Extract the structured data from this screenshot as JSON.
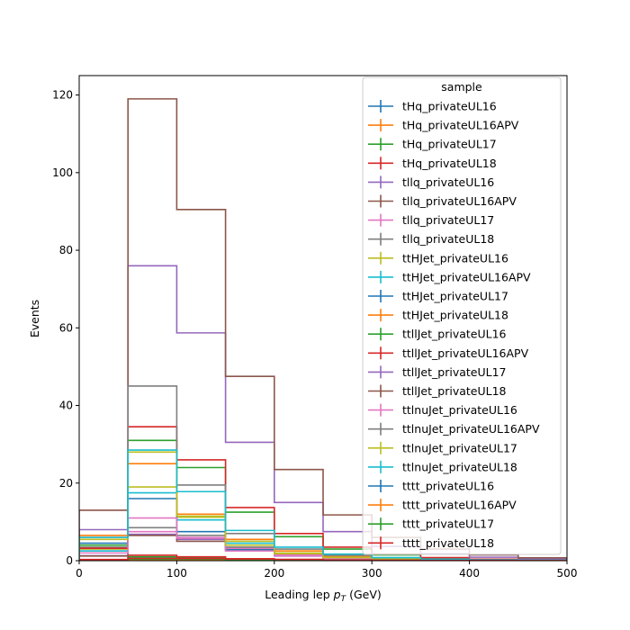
{
  "chart_data": {
    "type": "histogram-step",
    "xlabel_main": "Leading lep ",
    "xlabel_p": "p",
    "xlabel_sub": "T",
    "xlabel_unit": " (GeV)",
    "ylabel": "Events",
    "xlim": [
      0,
      500
    ],
    "ylim": [
      0,
      125
    ],
    "xticks": [
      0,
      100,
      200,
      300,
      400,
      500
    ],
    "yticks": [
      0,
      20,
      40,
      60,
      80,
      100,
      120
    ],
    "bin_edges": [
      0,
      50,
      100,
      150,
      200,
      250,
      300,
      350,
      400,
      450,
      500
    ],
    "grid": false,
    "legend_title": "sample",
    "legend_placement": "top-right",
    "series": [
      {
        "name": "tHq_privateUL16",
        "color": "#1f77b4",
        "values": [
          0.1,
          0.6,
          0.4,
          0.2,
          0.1,
          0.05,
          0.03,
          0.02,
          0.01,
          0.01
        ]
      },
      {
        "name": "tHq_privateUL16APV",
        "color": "#ff7f0e",
        "values": [
          0.1,
          0.5,
          0.35,
          0.2,
          0.1,
          0.05,
          0.03,
          0.02,
          0.01,
          0.01
        ]
      },
      {
        "name": "tHq_privateUL17",
        "color": "#2ca02c",
        "values": [
          0.2,
          1.0,
          0.7,
          0.4,
          0.2,
          0.1,
          0.05,
          0.03,
          0.02,
          0.01
        ]
      },
      {
        "name": "tHq_privateUL18",
        "color": "#d62728",
        "values": [
          0.3,
          1.4,
          1.0,
          0.5,
          0.3,
          0.15,
          0.08,
          0.05,
          0.03,
          0.02
        ]
      },
      {
        "name": "tllq_privateUL16",
        "color": "#9467bd",
        "values": [
          1.3,
          6.8,
          5.5,
          3.0,
          1.5,
          0.8,
          0.4,
          0.2,
          0.1,
          0.05
        ]
      },
      {
        "name": "tllq_privateUL16APV",
        "color": "#8c564b",
        "values": [
          1.2,
          6.5,
          5.0,
          2.8,
          1.4,
          0.7,
          0.35,
          0.2,
          0.1,
          0.05
        ]
      },
      {
        "name": "tllq_privateUL17",
        "color": "#e377c2",
        "values": [
          2.5,
          7.5,
          5.8,
          3.2,
          1.6,
          0.8,
          0.4,
          0.2,
          0.1,
          0.05
        ]
      },
      {
        "name": "tllq_privateUL18",
        "color": "#7f7f7f",
        "values": [
          3.5,
          8.5,
          6.5,
          3.5,
          1.8,
          0.9,
          0.45,
          0.25,
          0.12,
          0.06
        ]
      },
      {
        "name": "ttHJet_privateUL16",
        "color": "#bcbd22",
        "values": [
          3.0,
          19.0,
          11.2,
          5.0,
          2.0,
          0.9,
          0.4,
          0.2,
          0.1,
          0.05
        ]
      },
      {
        "name": "ttHJet_privateUL16APV",
        "color": "#17becf",
        "values": [
          2.5,
          17.5,
          10.5,
          4.5,
          1.8,
          0.8,
          0.4,
          0.2,
          0.1,
          0.05
        ]
      },
      {
        "name": "ttHJet_privateUL17",
        "color": "#1f77b4",
        "values": [
          4.5,
          16.0,
          7.5,
          2.8,
          1.2,
          0.6,
          0.3,
          0.15,
          0.08,
          0.04
        ]
      },
      {
        "name": "ttHJet_privateUL18",
        "color": "#ff7f0e",
        "values": [
          6.5,
          25.0,
          12.0,
          5.5,
          2.5,
          1.2,
          0.6,
          0.3,
          0.15,
          0.08
        ]
      },
      {
        "name": "ttllJet_privateUL16",
        "color": "#2ca02c",
        "values": [
          4.0,
          31.0,
          24.0,
          12.5,
          6.2,
          3.0,
          1.5,
          0.7,
          0.35,
          0.2
        ]
      },
      {
        "name": "ttllJet_privateUL16APV",
        "color": "#d62728",
        "values": [
          3.2,
          34.5,
          26.0,
          13.7,
          7.0,
          3.5,
          1.7,
          0.8,
          0.4,
          0.2
        ]
      },
      {
        "name": "ttllJet_privateUL17",
        "color": "#9467bd",
        "values": [
          8.0,
          76.0,
          58.7,
          30.5,
          15.0,
          7.5,
          3.7,
          1.8,
          0.9,
          0.45
        ]
      },
      {
        "name": "ttllJet_privateUL18",
        "color": "#8c564b",
        "values": [
          13.0,
          119.0,
          90.5,
          47.5,
          23.5,
          11.8,
          6.0,
          3.0,
          1.5,
          0.75
        ]
      },
      {
        "name": "ttlnuJet_privateUL16",
        "color": "#e377c2",
        "values": [
          2.0,
          11.0,
          6.0,
          2.5,
          1.2,
          0.6,
          0.3,
          0.15,
          0.07,
          0.04
        ]
      },
      {
        "name": "ttlnuJet_privateUL16APV",
        "color": "#7f7f7f",
        "values": [
          6.0,
          45.0,
          19.5,
          7.0,
          3.0,
          1.4,
          0.7,
          0.35,
          0.17,
          0.08
        ]
      },
      {
        "name": "ttlnuJet_privateUL17",
        "color": "#bcbd22",
        "values": [
          5.5,
          28.0,
          11.5,
          4.0,
          1.8,
          0.8,
          0.4,
          0.2,
          0.1,
          0.05
        ]
      },
      {
        "name": "ttlnuJet_privateUL18",
        "color": "#17becf",
        "values": [
          6.0,
          28.5,
          17.8,
          7.8,
          3.5,
          1.7,
          0.8,
          0.4,
          0.2,
          0.1
        ]
      },
      {
        "name": "tttt_privateUL16",
        "color": "#1f77b4",
        "values": [
          0.05,
          0.3,
          0.3,
          0.25,
          0.2,
          0.12,
          0.08,
          0.05,
          0.03,
          0.02
        ]
      },
      {
        "name": "tttt_privateUL16APV",
        "color": "#ff7f0e",
        "values": [
          0.05,
          0.3,
          0.3,
          0.25,
          0.2,
          0.12,
          0.08,
          0.05,
          0.03,
          0.02
        ]
      },
      {
        "name": "tttt_privateUL17",
        "color": "#2ca02c",
        "values": [
          0.05,
          0.4,
          0.4,
          0.3,
          0.25,
          0.15,
          0.1,
          0.06,
          0.04,
          0.02
        ]
      },
      {
        "name": "tttt_privateUL18",
        "color": "#d62728",
        "values": [
          0.08,
          0.6,
          0.55,
          0.45,
          0.35,
          0.2,
          0.12,
          0.08,
          0.05,
          0.03
        ]
      }
    ]
  }
}
